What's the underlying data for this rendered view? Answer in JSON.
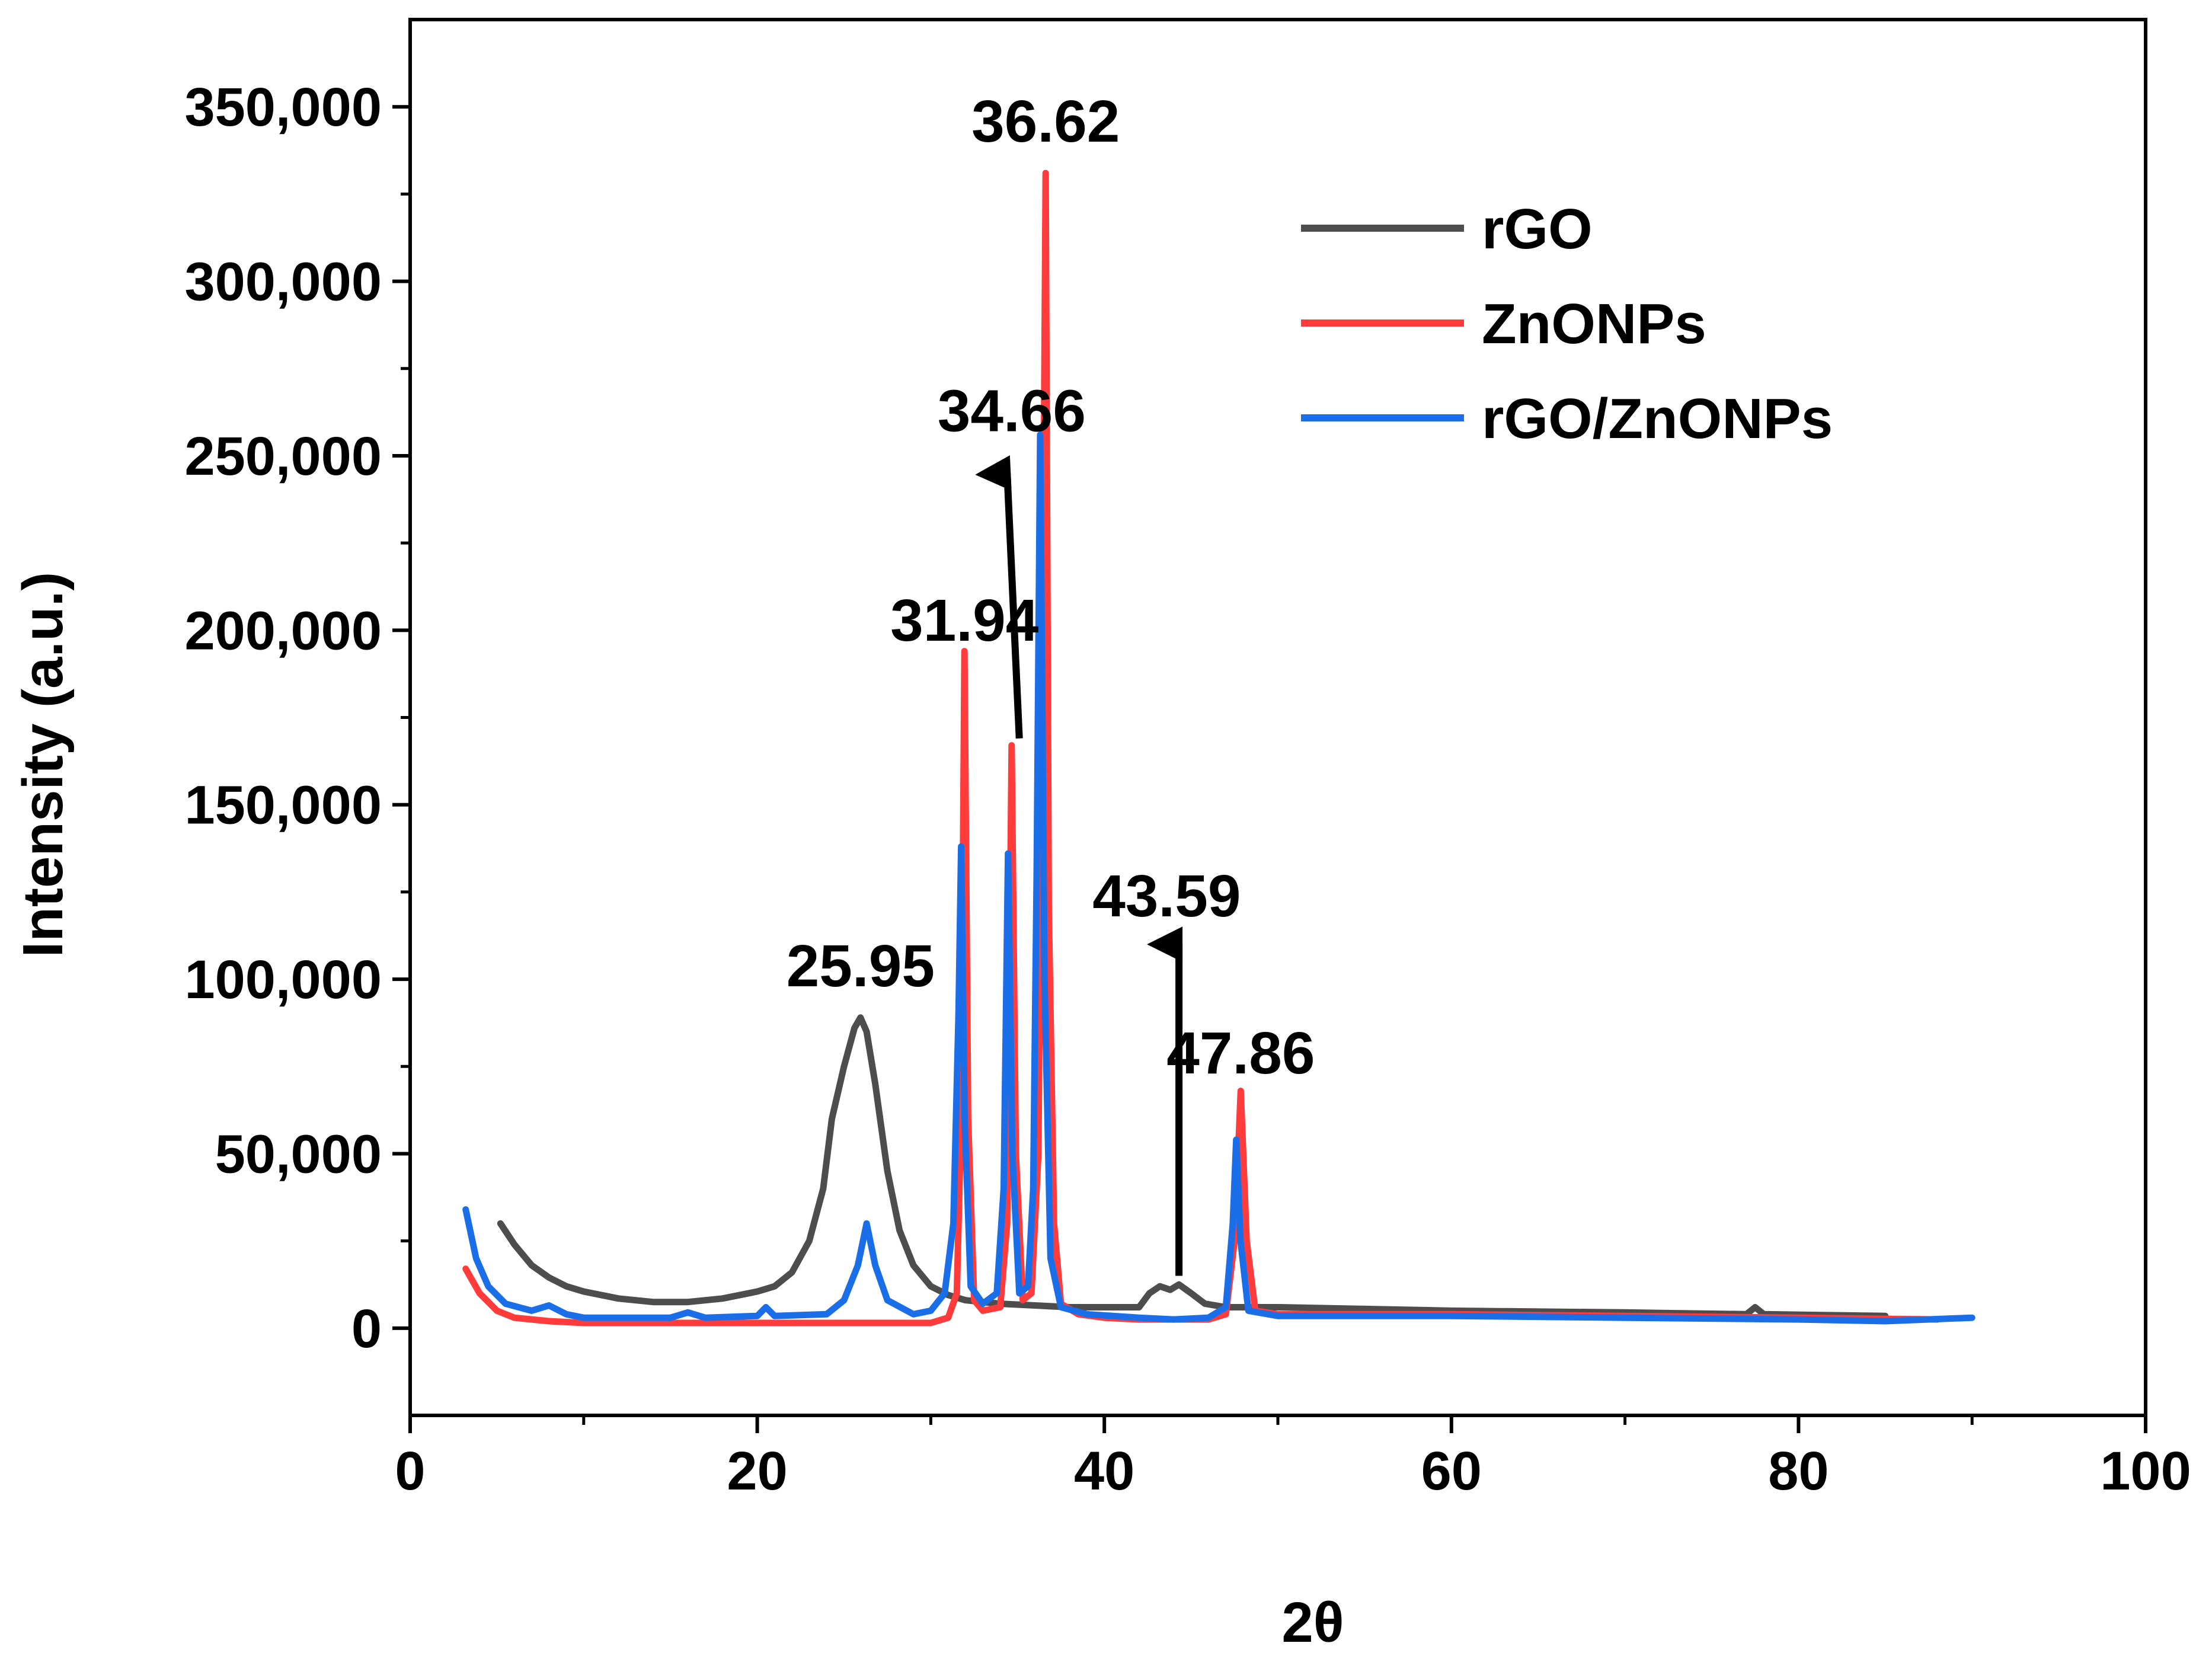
{
  "chart_data": {
    "type": "line",
    "title": "",
    "xlabel": "2θ",
    "ylabel": "Intensity (a.u.)",
    "xlim": [
      0,
      100
    ],
    "ylim": [
      -25000,
      375000
    ],
    "x_ticks": [
      0,
      20,
      40,
      60,
      80,
      100
    ],
    "x_tick_labels": [
      "0",
      "20",
      "40",
      "60",
      "80",
      "100"
    ],
    "y_ticks": [
      0,
      50000,
      100000,
      150000,
      200000,
      250000,
      300000,
      350000
    ],
    "y_tick_labels": [
      "0",
      "50,000",
      "100,000",
      "150,000",
      "200,000",
      "250,000",
      "300,000",
      "350,000"
    ],
    "grid": false,
    "legend_position": "top-right",
    "series": [
      {
        "name": "rGO",
        "color": "#4d4d4d",
        "points": [
          [
            5.2,
            30000
          ],
          [
            6,
            24000
          ],
          [
            7,
            18000
          ],
          [
            8,
            14500
          ],
          [
            9,
            12000
          ],
          [
            10,
            10500
          ],
          [
            12,
            8500
          ],
          [
            14,
            7500
          ],
          [
            16,
            7500
          ],
          [
            18,
            8500
          ],
          [
            20,
            10500
          ],
          [
            21,
            12000
          ],
          [
            22,
            16000
          ],
          [
            23,
            25000
          ],
          [
            23.8,
            40000
          ],
          [
            24.3,
            60000
          ],
          [
            25,
            75000
          ],
          [
            25.6,
            86000
          ],
          [
            25.95,
            89000
          ],
          [
            26.3,
            85000
          ],
          [
            26.8,
            70000
          ],
          [
            27.5,
            45000
          ],
          [
            28.2,
            28000
          ],
          [
            29,
            18000
          ],
          [
            30,
            12000
          ],
          [
            31,
            9500
          ],
          [
            32,
            8000
          ],
          [
            34,
            7000
          ],
          [
            36,
            6500
          ],
          [
            38,
            6000
          ],
          [
            40,
            6000
          ],
          [
            42,
            6000
          ],
          [
            42.6,
            10000
          ],
          [
            43.2,
            12000
          ],
          [
            43.8,
            11000
          ],
          [
            44.3,
            12500
          ],
          [
            45,
            10000
          ],
          [
            45.8,
            7000
          ],
          [
            47,
            6000
          ],
          [
            50,
            6000
          ],
          [
            55,
            5500
          ],
          [
            60,
            5000
          ],
          [
            70,
            4500
          ],
          [
            77,
            4000
          ],
          [
            77.5,
            6000
          ],
          [
            78,
            4000
          ],
          [
            85,
            3500
          ]
        ]
      },
      {
        "name": "ZnONPs",
        "color": "#ff3b3b",
        "points": [
          [
            3.2,
            17000
          ],
          [
            4,
            10000
          ],
          [
            5,
            5000
          ],
          [
            6,
            3000
          ],
          [
            8,
            2000
          ],
          [
            10,
            1500
          ],
          [
            20,
            1500
          ],
          [
            30,
            1500
          ],
          [
            31,
            3000
          ],
          [
            31.5,
            10000
          ],
          [
            31.75,
            60000
          ],
          [
            31.94,
            194000
          ],
          [
            32.15,
            60000
          ],
          [
            32.5,
            8000
          ],
          [
            33,
            5000
          ],
          [
            34,
            6000
          ],
          [
            34.4,
            30000
          ],
          [
            34.66,
            167000
          ],
          [
            34.9,
            50000
          ],
          [
            35.3,
            8000
          ],
          [
            35.8,
            10000
          ],
          [
            36.2,
            50000
          ],
          [
            36.45,
            200000
          ],
          [
            36.62,
            331000
          ],
          [
            36.8,
            120000
          ],
          [
            37.1,
            30000
          ],
          [
            37.5,
            7000
          ],
          [
            38.5,
            4000
          ],
          [
            40,
            3000
          ],
          [
            42,
            2500
          ],
          [
            44,
            2500
          ],
          [
            46,
            2500
          ],
          [
            47,
            4000
          ],
          [
            47.5,
            25000
          ],
          [
            47.86,
            68000
          ],
          [
            48.2,
            25000
          ],
          [
            48.7,
            5000
          ],
          [
            50,
            4000
          ],
          [
            55,
            4000
          ],
          [
            60,
            4000
          ],
          [
            70,
            3500
          ],
          [
            80,
            3000
          ],
          [
            88,
            2500
          ]
        ]
      },
      {
        "name": "rGO/ZnONPs",
        "color": "#1a6fe8",
        "points": [
          [
            3.2,
            34000
          ],
          [
            3.8,
            20000
          ],
          [
            4.5,
            12000
          ],
          [
            5.5,
            7000
          ],
          [
            7,
            5000
          ],
          [
            8,
            6500
          ],
          [
            9,
            4000
          ],
          [
            10,
            3000
          ],
          [
            15,
            3000
          ],
          [
            16,
            4500
          ],
          [
            17,
            3000
          ],
          [
            20,
            3500
          ],
          [
            20.5,
            6000
          ],
          [
            21,
            3500
          ],
          [
            24,
            4000
          ],
          [
            25,
            8000
          ],
          [
            25.8,
            18000
          ],
          [
            26.3,
            30000
          ],
          [
            26.8,
            18000
          ],
          [
            27.5,
            8000
          ],
          [
            29,
            4000
          ],
          [
            30,
            5000
          ],
          [
            30.8,
            10000
          ],
          [
            31.3,
            30000
          ],
          [
            31.6,
            90000
          ],
          [
            31.75,
            138000
          ],
          [
            31.95,
            60000
          ],
          [
            32.3,
            12000
          ],
          [
            33,
            7000
          ],
          [
            33.8,
            10000
          ],
          [
            34.2,
            40000
          ],
          [
            34.45,
            136000
          ],
          [
            34.7,
            50000
          ],
          [
            35.1,
            10000
          ],
          [
            35.6,
            12000
          ],
          [
            35.9,
            40000
          ],
          [
            36.1,
            130000
          ],
          [
            36.3,
            256000
          ],
          [
            36.55,
            100000
          ],
          [
            36.9,
            20000
          ],
          [
            37.5,
            6000
          ],
          [
            39,
            4000
          ],
          [
            42,
            3000
          ],
          [
            44,
            2500
          ],
          [
            46,
            3000
          ],
          [
            47,
            6000
          ],
          [
            47.4,
            30000
          ],
          [
            47.6,
            54000
          ],
          [
            47.85,
            25000
          ],
          [
            48.3,
            5000
          ],
          [
            50,
            3500
          ],
          [
            55,
            3500
          ],
          [
            60,
            3500
          ],
          [
            70,
            3000
          ],
          [
            80,
            2500
          ],
          [
            85,
            2000
          ],
          [
            90,
            3000
          ]
        ]
      }
    ],
    "annotations": [
      {
        "text": "36.62",
        "x": 36.62,
        "y": 340000
      },
      {
        "text": "34.66",
        "x": 34.66,
        "y": 257000
      },
      {
        "text": "31.94",
        "x": 31.94,
        "y": 197000
      },
      {
        "text": "25.95",
        "x": 25.95,
        "y": 98000
      },
      {
        "text": "43.59",
        "x": 43.59,
        "y": 118000
      },
      {
        "text": "47.86",
        "x": 47.86,
        "y": 73000
      }
    ],
    "arrows": [
      {
        "from": [
          35.1,
          169000
        ],
        "to": [
          34.4,
          245000
        ]
      },
      {
        "from": [
          44.3,
          15000
        ],
        "to": [
          44.3,
          110000
        ]
      }
    ]
  }
}
